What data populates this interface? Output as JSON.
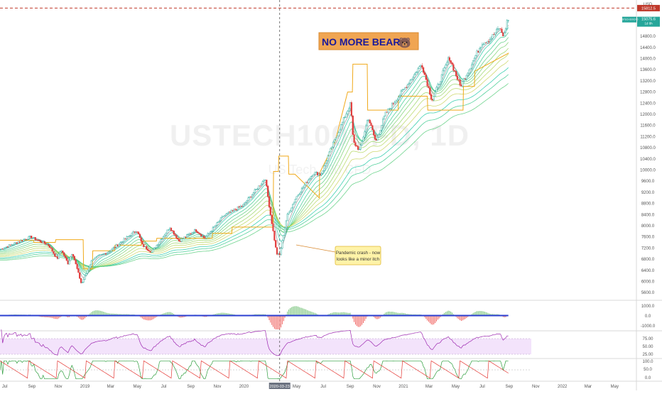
{
  "chart_data": {
    "type": "candlestick",
    "symbol_watermark": "USTECH100CFD, 1D",
    "symbol_subtitle": "US Tech 100 CFD",
    "currency_label": "USD",
    "last_price_tag": "15075.6",
    "last_price_sub": "1d 8h",
    "symbol_tag": "USTECH100CFD",
    "resistance_tag": "15812.5",
    "resistance_level": 15812.5,
    "annotation_title": "NO MORE BEARS!",
    "annotation_emoji": "🐻",
    "annotation_callout": [
      "Pandemic crash - now",
      "looks like a minor itch"
    ],
    "crosshair_date": "2020-03-23",
    "x_range": [
      "2018-06-20",
      "2022-06-20"
    ],
    "main_ylim": [
      5400,
      15900
    ],
    "main_y_ticks": [
      5600,
      6000,
      6400,
      6800,
      7200,
      7600,
      8000,
      8400,
      8800,
      9200,
      9600,
      10000,
      10400,
      10800,
      11200,
      11600,
      12000,
      12400,
      12800,
      13200,
      13600,
      14000,
      14400,
      14800,
      15200
    ],
    "main_y_tick_labels": [
      "5600.0",
      "6000.0",
      "6400.0",
      "6800.0",
      "7200.0",
      "7600.0",
      "8000.0",
      "8400.0",
      "8800.0",
      "9200.0",
      "9600.0",
      "10000.0",
      "10400.0",
      "10800.0",
      "11200.0",
      "11600.0",
      "12000.0",
      "12400.0",
      "12800.0",
      "13200.0",
      "13600.0",
      "14000.0",
      "14400.0",
      "14800.0",
      "15200.0"
    ],
    "x_ticks": [
      {
        "date": "2018-07-01",
        "label": "Jul"
      },
      {
        "date": "2018-09-01",
        "label": "Sep"
      },
      {
        "date": "2018-11-01",
        "label": "Nov"
      },
      {
        "date": "2019-01-01",
        "label": "2019"
      },
      {
        "date": "2019-03-01",
        "label": "Mar"
      },
      {
        "date": "2019-05-01",
        "label": "May"
      },
      {
        "date": "2019-07-01",
        "label": "Jul"
      },
      {
        "date": "2019-09-01",
        "label": "Sep"
      },
      {
        "date": "2019-11-01",
        "label": "Nov"
      },
      {
        "date": "2020-01-01",
        "label": "2020"
      },
      {
        "date": "2020-05-01",
        "label": "May"
      },
      {
        "date": "2020-07-01",
        "label": "Jul"
      },
      {
        "date": "2020-09-01",
        "label": "Sep"
      },
      {
        "date": "2020-11-01",
        "label": "Nov"
      },
      {
        "date": "2021-01-01",
        "label": "2021"
      },
      {
        "date": "2021-03-01",
        "label": "Mar"
      },
      {
        "date": "2021-05-01",
        "label": "May"
      },
      {
        "date": "2021-07-01",
        "label": "Jul"
      },
      {
        "date": "2021-09-01",
        "label": "Sep"
      },
      {
        "date": "2021-11-01",
        "label": "Nov"
      },
      {
        "date": "2022-01-01",
        "label": "2022"
      },
      {
        "date": "2022-03-01",
        "label": "Mar"
      },
      {
        "date": "2022-05-01",
        "label": "May"
      }
    ],
    "price_anchors": [
      [
        "2018-06-20",
        7150
      ],
      [
        "2018-08-29",
        7600
      ],
      [
        "2018-10-10",
        7300
      ],
      [
        "2018-10-29",
        6800
      ],
      [
        "2018-11-07",
        7150
      ],
      [
        "2018-11-23",
        6650
      ],
      [
        "2018-12-03",
        7050
      ],
      [
        "2018-12-24",
        5900
      ],
      [
        "2019-01-18",
        6800
      ],
      [
        "2019-02-22",
        7050
      ],
      [
        "2019-03-20",
        7350
      ],
      [
        "2019-04-30",
        7850
      ],
      [
        "2019-05-13",
        7300
      ],
      [
        "2019-06-03",
        7050
      ],
      [
        "2019-07-15",
        7950
      ],
      [
        "2019-08-05",
        7450
      ],
      [
        "2019-09-12",
        7850
      ],
      [
        "2019-10-03",
        7550
      ],
      [
        "2019-11-15",
        8350
      ],
      [
        "2019-12-31",
        8750
      ],
      [
        "2020-02-19",
        9700
      ],
      [
        "2020-03-01",
        8500
      ],
      [
        "2020-03-16",
        7000
      ],
      [
        "2020-03-23",
        6950
      ],
      [
        "2020-04-09",
        8350
      ],
      [
        "2020-04-29",
        9000
      ],
      [
        "2020-06-08",
        9900
      ],
      [
        "2020-06-26",
        9850
      ],
      [
        "2020-07-20",
        10800
      ],
      [
        "2020-09-02",
        12400
      ],
      [
        "2020-09-08",
        11000
      ],
      [
        "2020-09-23",
        10700
      ],
      [
        "2020-10-12",
        11900
      ],
      [
        "2020-10-30",
        11000
      ],
      [
        "2020-11-20",
        12000
      ],
      [
        "2020-12-31",
        12850
      ],
      [
        "2021-02-12",
        13800
      ],
      [
        "2021-03-08",
        12500
      ],
      [
        "2021-04-16",
        14050
      ],
      [
        "2021-05-12",
        13000
      ],
      [
        "2021-06-30",
        14550
      ],
      [
        "2021-07-19",
        14700
      ],
      [
        "2021-08-09",
        15100
      ],
      [
        "2021-08-20",
        14800
      ],
      [
        "2021-08-27",
        15350
      ],
      [
        "2021-08-31",
        15400
      ]
    ],
    "stop_line_anchors": [
      [
        "2018-06-20",
        7480
      ],
      [
        "2018-09-05",
        7480
      ],
      [
        "2018-09-06",
        7400
      ],
      [
        "2018-10-25",
        7400
      ],
      [
        "2018-10-26",
        7500
      ],
      [
        "2018-12-28",
        7500
      ],
      [
        "2018-12-29",
        6450
      ],
      [
        "2019-01-18",
        6450
      ],
      [
        "2019-01-19",
        7100
      ],
      [
        "2019-03-10",
        7100
      ],
      [
        "2019-03-11",
        7300
      ],
      [
        "2019-05-10",
        7300
      ],
      [
        "2019-05-11",
        7450
      ],
      [
        "2019-06-14",
        7450
      ],
      [
        "2019-06-15",
        7550
      ],
      [
        "2019-10-20",
        7550
      ],
      [
        "2019-10-21",
        7730
      ],
      [
        "2019-12-04",
        7730
      ],
      [
        "2019-12-05",
        7950
      ],
      [
        "2020-03-08",
        7950
      ],
      [
        "2020-03-09",
        9950
      ],
      [
        "2020-03-20",
        9950
      ],
      [
        "2020-03-21",
        10500
      ],
      [
        "2020-04-12",
        10500
      ],
      [
        "2020-04-13",
        9850
      ],
      [
        "2020-04-27",
        9850
      ],
      [
        "2020-06-22",
        9000
      ],
      [
        "2020-06-23",
        9900
      ],
      [
        "2020-07-28",
        11000
      ],
      [
        "2020-08-26",
        12800
      ],
      [
        "2020-09-06",
        12800
      ],
      [
        "2020-09-07",
        13800
      ],
      [
        "2020-10-10",
        13800
      ],
      [
        "2020-10-11",
        12150
      ],
      [
        "2020-12-20",
        12150
      ],
      [
        "2020-12-21",
        12650
      ],
      [
        "2021-02-25",
        12650
      ],
      [
        "2021-02-26",
        12150
      ],
      [
        "2021-05-18",
        12150
      ],
      [
        "2021-05-19",
        13000
      ],
      [
        "2021-06-13",
        13000
      ],
      [
        "2021-06-14",
        13550
      ],
      [
        "2021-08-31",
        14200
      ]
    ],
    "ribbon_offsets": [
      0.995,
      0.985,
      0.975,
      0.965,
      0.955,
      0.945,
      0.935,
      0.925,
      0.915,
      0.905
    ],
    "ribbon_colors": [
      "#1ec8a5",
      "#37c98c",
      "#56cc7a",
      "#77d06b",
      "#95d45f",
      "#b3d65a",
      "#c9d25a"
    ],
    "down_color": "#e23c3c",
    "up_color": "#26a69a",
    "stop_color": "#f0a91a",
    "macd_panel": {
      "tick_labels": [
        "1000.0",
        "0.0",
        "-1000.0"
      ],
      "ylim": [
        -1300,
        1300
      ]
    },
    "rsi_panel": {
      "tick_labels": [
        "75.00",
        "50.00",
        "25.00"
      ],
      "ylim": [
        10,
        90
      ]
    },
    "stoch_panel": {
      "tick_labels": [
        "100.0",
        "50.0",
        "0.0"
      ],
      "ylim": [
        -5,
        105
      ]
    }
  }
}
